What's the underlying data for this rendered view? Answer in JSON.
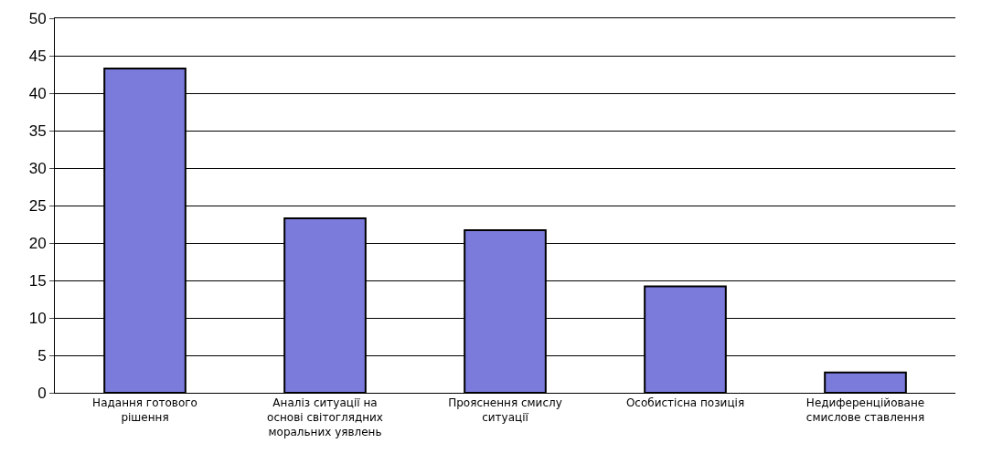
{
  "chart_data": {
    "type": "bar",
    "categories": [
      "Надання готового\nрішення",
      "Аналіз ситуації на\nоснові світоглядних\nморальних уявлень",
      "Прояснення смислу\nситуації",
      "Особистісна позиція",
      "Недиференційоване\nсмислове ставлення"
    ],
    "values": [
      43.3,
      23.3,
      21.7,
      14.2,
      2.7
    ],
    "color": "#7b7bdc",
    "ylim": [
      0,
      50
    ],
    "yticks": [
      0,
      5,
      10,
      15,
      20,
      25,
      30,
      35,
      40,
      45,
      50
    ],
    "grid": "y"
  }
}
